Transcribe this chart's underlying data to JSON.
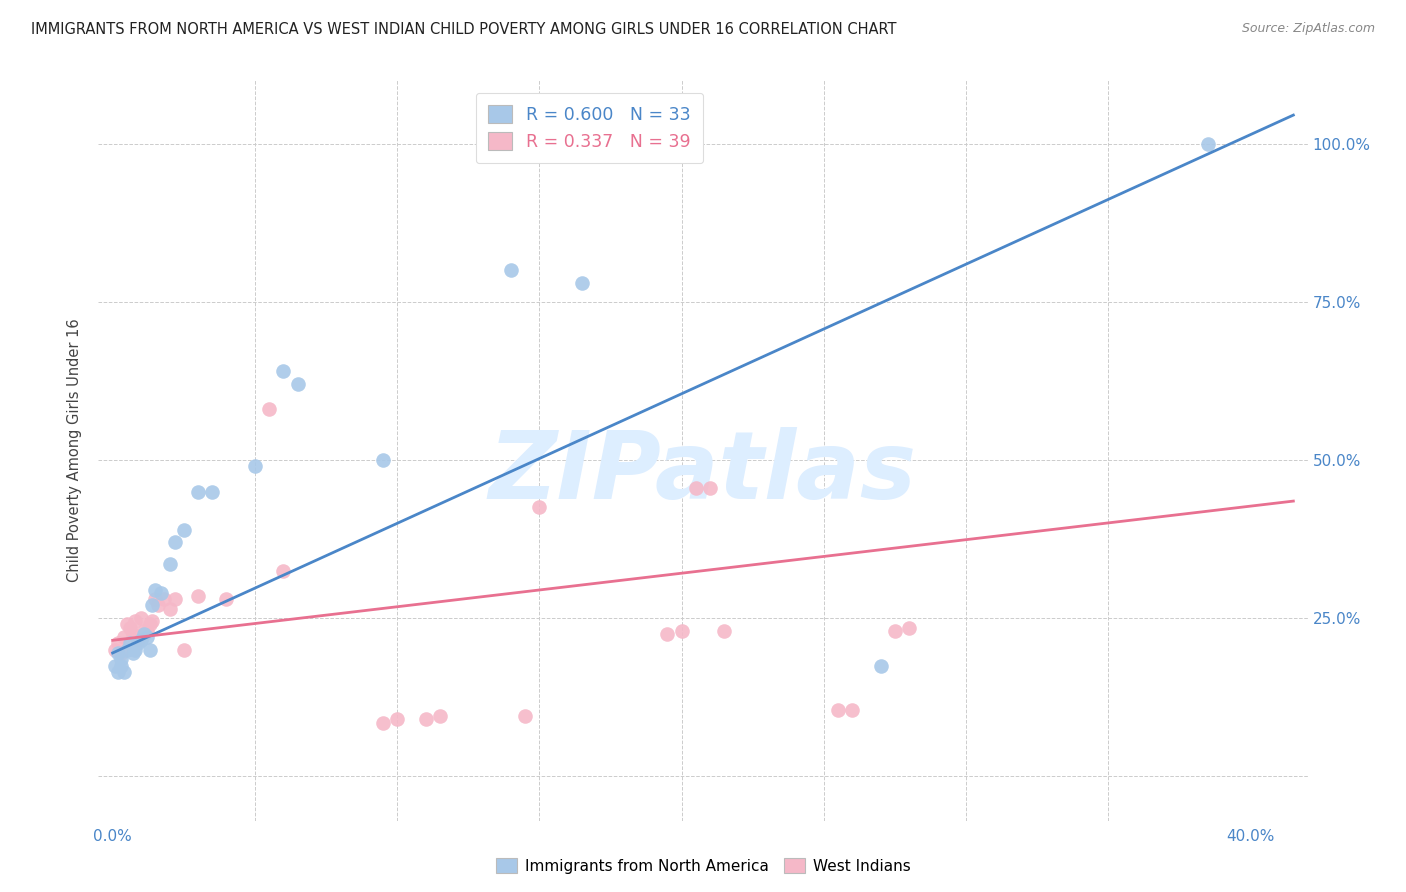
{
  "title": "IMMIGRANTS FROM NORTH AMERICA VS WEST INDIAN CHILD POVERTY AMONG GIRLS UNDER 16 CORRELATION CHART",
  "source": "Source: ZipAtlas.com",
  "ylabel": "Child Poverty Among Girls Under 16",
  "yticks": [
    0.0,
    0.25,
    0.5,
    0.75,
    1.0
  ],
  "ytick_labels": [
    "",
    "25.0%",
    "50.0%",
    "75.0%",
    "100.0%"
  ],
  "xticks": [
    0.0,
    0.05,
    0.1,
    0.15,
    0.2,
    0.25,
    0.3,
    0.35,
    0.4
  ],
  "xtick_labels": [
    "0.0%",
    "",
    "",
    "",
    "",
    "",
    "",
    "",
    "40.0%"
  ],
  "xlim": [
    -0.005,
    0.42
  ],
  "ylim": [
    -0.07,
    1.1
  ],
  "blue_R": 0.6,
  "blue_N": 33,
  "pink_R": 0.337,
  "pink_N": 39,
  "blue_color": "#a8c8e8",
  "pink_color": "#f5b8c8",
  "blue_line_color": "#4a86c8",
  "pink_line_color": "#e87090",
  "watermark": "ZIPatlas",
  "watermark_color": "#ddeeff",
  "blue_x": [
    0.001,
    0.002,
    0.002,
    0.003,
    0.003,
    0.004,
    0.005,
    0.006,
    0.007,
    0.008,
    0.009,
    0.01,
    0.011,
    0.012,
    0.013,
    0.014,
    0.015,
    0.017,
    0.02,
    0.022,
    0.025,
    0.03,
    0.035,
    0.05,
    0.06,
    0.065,
    0.095,
    0.14,
    0.15,
    0.165,
    0.185,
    0.27,
    0.385
  ],
  "blue_y": [
    0.175,
    0.195,
    0.165,
    0.185,
    0.175,
    0.165,
    0.2,
    0.21,
    0.195,
    0.2,
    0.21,
    0.215,
    0.225,
    0.22,
    0.2,
    0.27,
    0.295,
    0.29,
    0.335,
    0.37,
    0.39,
    0.45,
    0.45,
    0.49,
    0.64,
    0.62,
    0.5,
    0.8,
    1.0,
    0.78,
    1.0,
    0.175,
    1.0
  ],
  "pink_x": [
    0.001,
    0.002,
    0.003,
    0.004,
    0.005,
    0.006,
    0.007,
    0.008,
    0.009,
    0.01,
    0.011,
    0.012,
    0.013,
    0.014,
    0.015,
    0.016,
    0.018,
    0.02,
    0.022,
    0.025,
    0.03,
    0.04,
    0.055,
    0.06,
    0.095,
    0.1,
    0.11,
    0.115,
    0.145,
    0.15,
    0.195,
    0.2,
    0.205,
    0.21,
    0.215,
    0.255,
    0.26,
    0.275,
    0.28
  ],
  "pink_y": [
    0.2,
    0.21,
    0.195,
    0.22,
    0.24,
    0.235,
    0.225,
    0.245,
    0.215,
    0.25,
    0.23,
    0.23,
    0.24,
    0.245,
    0.28,
    0.27,
    0.28,
    0.265,
    0.28,
    0.2,
    0.285,
    0.28,
    0.58,
    0.325,
    0.085,
    0.09,
    0.09,
    0.095,
    0.095,
    0.425,
    0.225,
    0.23,
    0.455,
    0.455,
    0.23,
    0.105,
    0.105,
    0.23,
    0.235
  ],
  "blue_line_x0": 0.0,
  "blue_line_x1": 0.415,
  "blue_line_y0": 0.195,
  "blue_line_y1": 1.045,
  "pink_line_x0": 0.0,
  "pink_line_x1": 0.415,
  "pink_line_y0": 0.215,
  "pink_line_y1": 0.435
}
